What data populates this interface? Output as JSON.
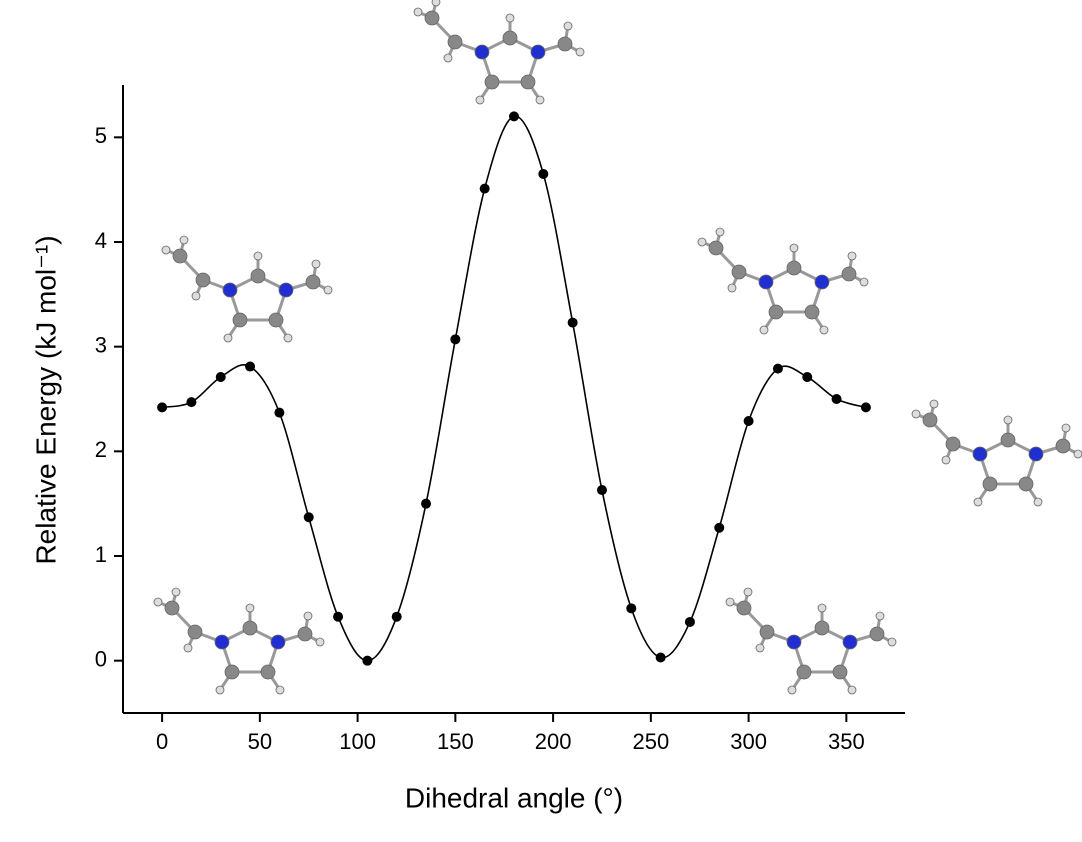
{
  "chart_data": {
    "type": "scatter",
    "xlabel": "Dihedral angle (°)",
    "ylabel": "Relative Energy (kJ mol⁻¹)",
    "x": [
      0,
      15,
      30,
      45,
      60,
      75,
      90,
      105,
      120,
      135,
      150,
      165,
      180,
      195,
      210,
      225,
      240,
      255,
      270,
      285,
      300,
      315,
      330,
      345,
      360
    ],
    "values": [
      2.42,
      2.47,
      2.71,
      2.81,
      2.37,
      1.37,
      0.42,
      0.0,
      0.42,
      1.5,
      3.07,
      4.51,
      5.2,
      4.65,
      3.23,
      1.63,
      0.5,
      0.03,
      0.37,
      1.27,
      2.29,
      2.79,
      2.71,
      2.5,
      2.42
    ],
    "color": "#000000",
    "xlim": [
      -20,
      380
    ],
    "xticks": [
      0,
      50,
      100,
      150,
      200,
      250,
      300,
      350
    ],
    "ylim": [
      -0.5,
      5.5
    ],
    "yticks": [
      0,
      1,
      2,
      3,
      4,
      5
    ],
    "grid": false,
    "smooth_line": true
  }
}
